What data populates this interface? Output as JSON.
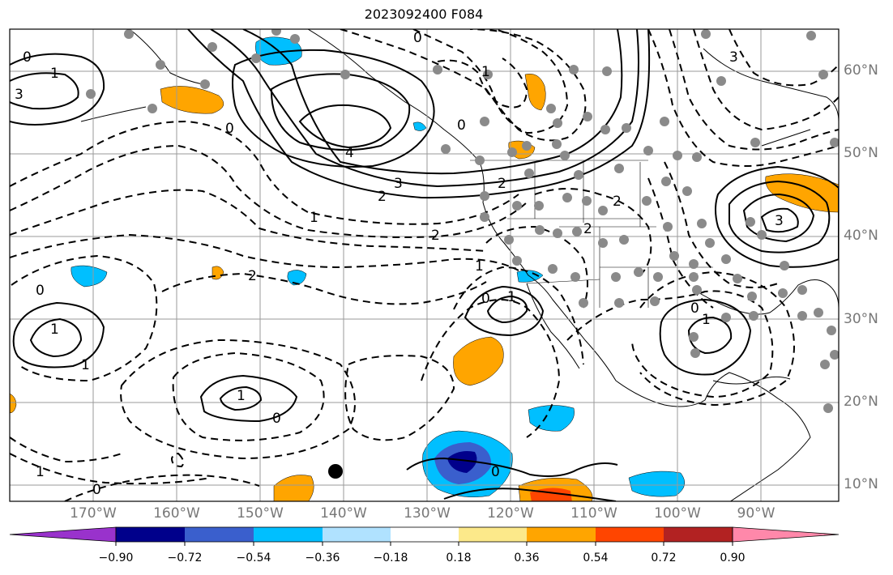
{
  "title": "2023092400 F084",
  "lon_labels": [
    "170°W",
    "160°W",
    "150°W",
    "140°W",
    "130°W",
    "120°W",
    "110°W",
    "100°W",
    "90°W"
  ],
  "lat_labels": [
    "60°N",
    "50°N",
    "40°N",
    "30°N",
    "20°N",
    "10°N"
  ],
  "colorbar": {
    "ticks": [
      "−0.90",
      "−0.72",
      "−0.54",
      "−0.36",
      "−0.18",
      "0.18",
      "0.36",
      "0.54",
      "0.72",
      "0.90"
    ],
    "colors": [
      "#9932cc",
      "#00008b",
      "#3a5fcd",
      "#00bfff",
      "#b0e2ff",
      "#ffffff",
      "#fce98a",
      "#ffa500",
      "#ff4500",
      "#b22222",
      "#ff88aa"
    ]
  },
  "contour_labels": [
    "0",
    "1",
    "3",
    "4",
    "3",
    "2",
    "1",
    "2",
    "1",
    "0",
    "2",
    "1",
    "0",
    "1",
    "1",
    "0",
    "1",
    "0",
    "2",
    "0",
    "0",
    "1",
    "0",
    "0",
    "1",
    "3",
    "3",
    "2",
    "2",
    "1",
    "0"
  ],
  "colors": {
    "positive_contour": "#000000",
    "grid": "#9a9a9a",
    "dots": "#8a8a8a",
    "marker": "#000000"
  }
}
